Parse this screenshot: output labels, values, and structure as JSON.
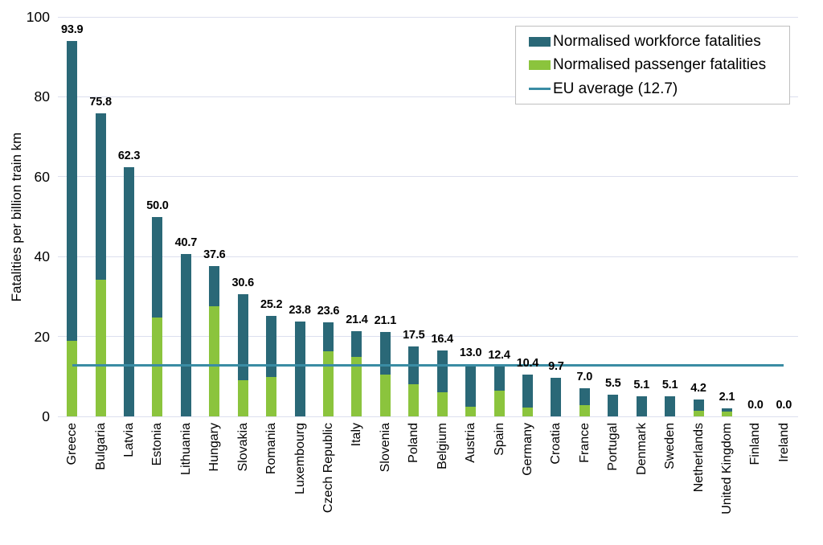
{
  "chart_data": {
    "type": "bar",
    "stacked": true,
    "title": "",
    "ylabel": "Fatalities per billion train km",
    "xlabel": "",
    "ylim": [
      0,
      100
    ],
    "yticks": [
      0,
      20,
      40,
      60,
      80,
      100
    ],
    "grid": true,
    "legend_position": "top-right",
    "categories": [
      "Greece",
      "Bulgaria",
      "Latvia",
      "Estonia",
      "Lithuania",
      "Hungary",
      "Slovakia",
      "Romania",
      "Luxembourg",
      "Czech Republic",
      "Italy",
      "Slovenia",
      "Poland",
      "Belgium",
      "Austria",
      "Spain",
      "Germany",
      "Croatia",
      "France",
      "Portugal",
      "Denmark",
      "Sweden",
      "Netherlands",
      "United Kingdom",
      "Finland",
      "Ireland"
    ],
    "totals": [
      93.9,
      75.8,
      62.3,
      50.0,
      40.7,
      37.6,
      30.6,
      25.2,
      23.8,
      23.6,
      21.4,
      21.1,
      17.5,
      16.4,
      13.0,
      12.4,
      10.4,
      9.7,
      7.0,
      5.5,
      5.1,
      5.1,
      4.2,
      2.1,
      0.0,
      0.0
    ],
    "total_labels": [
      "93.9",
      "75.8",
      "62.3",
      "50.0",
      "40.7",
      "37.6",
      "30.6",
      "25.2",
      "23.8",
      "23.6",
      "21.4",
      "21.1",
      "17.5",
      "16.4",
      "13.0",
      "12.4",
      "10.4",
      "9.7",
      "7.0",
      "5.5",
      "5.1",
      "5.1",
      "4.2",
      "2.1",
      "0.0",
      "0.0"
    ],
    "series": [
      {
        "name": "Normalised workforce fatalities",
        "color": "#2A6877",
        "values": [
          75.0,
          41.5,
          62.3,
          25.2,
          40.7,
          10.0,
          21.6,
          15.3,
          23.8,
          7.4,
          6.5,
          10.7,
          9.5,
          10.4,
          10.6,
          6.0,
          8.2,
          9.7,
          4.2,
          5.5,
          5.1,
          5.1,
          2.8,
          0.9,
          0.0,
          0.0
        ]
      },
      {
        "name": "Normalised passenger fatalities",
        "color": "#8BC43D",
        "values": [
          18.9,
          34.3,
          0.0,
          24.8,
          0.0,
          27.6,
          9.0,
          9.9,
          0.0,
          16.2,
          14.9,
          10.4,
          8.0,
          6.0,
          2.4,
          6.4,
          2.2,
          0.0,
          2.8,
          0.0,
          0.0,
          0.0,
          1.4,
          1.2,
          0.0,
          0.0
        ]
      }
    ],
    "eu_average": {
      "label": "EU average (12.7)",
      "value": 12.7,
      "color": "#3A8CA4"
    },
    "colors": {
      "gridline": "#DCDFEE",
      "text": "#000000",
      "background": "#FFFFFF",
      "legend_border": "#BFBFBF"
    }
  }
}
